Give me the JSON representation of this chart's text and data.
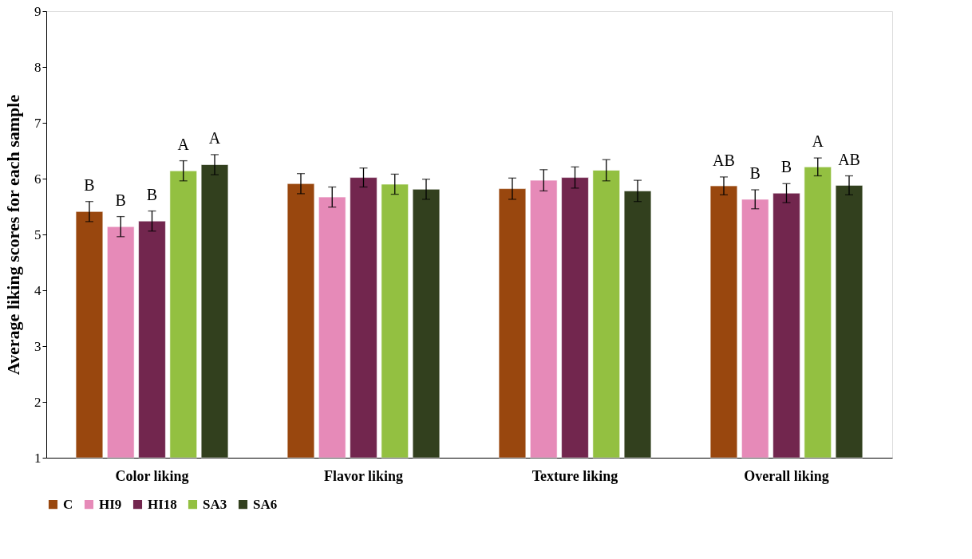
{
  "chart_data": {
    "type": "bar",
    "ylabel": "Average liking scores for each sample",
    "categories": [
      "Color liking",
      "Flavor liking",
      "Texture liking",
      "Overall liking"
    ],
    "series": [
      {
        "name": "C",
        "color": "#99470e",
        "values": [
          5.41,
          5.91,
          5.82,
          5.87
        ],
        "errors": [
          0.18,
          0.18,
          0.19,
          0.16
        ],
        "value_labels": [
          "B",
          null,
          null,
          "AB"
        ]
      },
      {
        "name": "HI9",
        "color": "#e68ab8",
        "values": [
          5.14,
          5.67,
          5.97,
          5.63
        ],
        "errors": [
          0.18,
          0.18,
          0.19,
          0.17
        ],
        "value_labels": [
          "B",
          null,
          null,
          "B"
        ]
      },
      {
        "name": "HI18",
        "color": "#72264e",
        "values": [
          5.24,
          6.02,
          6.02,
          5.74
        ],
        "errors": [
          0.18,
          0.17,
          0.19,
          0.17
        ],
        "value_labels": [
          "B",
          null,
          null,
          "B"
        ]
      },
      {
        "name": "SA3",
        "color": "#93c041",
        "values": [
          6.14,
          5.9,
          6.15,
          6.21
        ],
        "errors": [
          0.18,
          0.18,
          0.19,
          0.16
        ],
        "value_labels": [
          "A",
          null,
          null,
          "A"
        ]
      },
      {
        "name": "SA6",
        "color": "#32401e",
        "values": [
          6.25,
          5.81,
          5.78,
          5.88
        ],
        "errors": [
          0.18,
          0.18,
          0.19,
          0.17
        ],
        "value_labels": [
          "A",
          null,
          null,
          "AB"
        ]
      }
    ],
    "ylim": [
      1,
      9
    ],
    "yticks": [
      1,
      2,
      3,
      4,
      5,
      6,
      7,
      8,
      9
    ],
    "grid": false,
    "legend": "bottom"
  }
}
